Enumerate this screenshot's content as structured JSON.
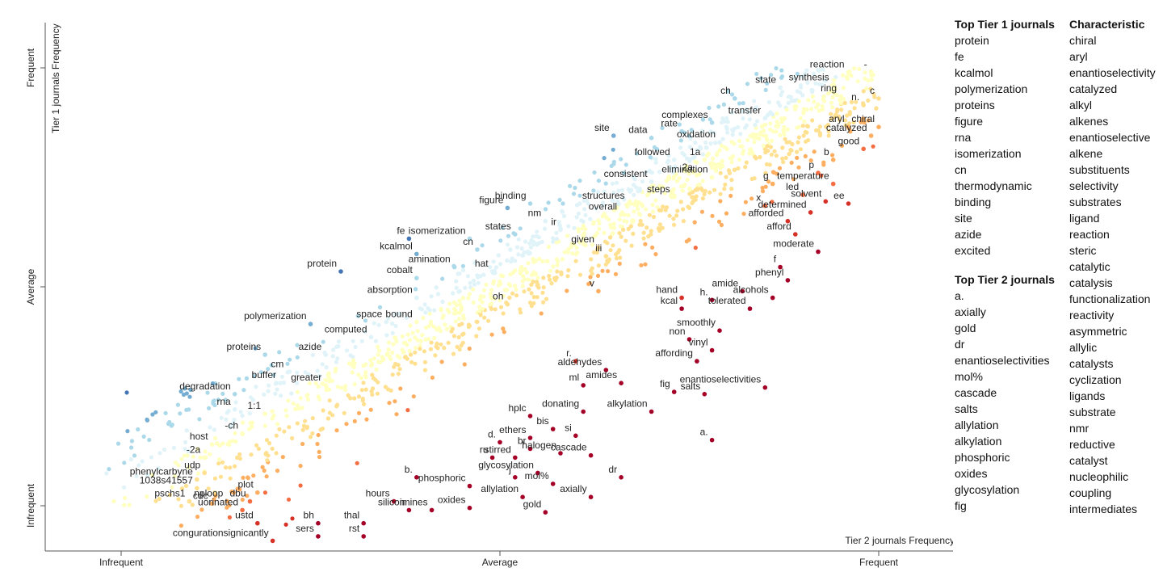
{
  "chart_data": {
    "type": "scatter",
    "x_axis": {
      "title": "Tier 2 journals Frequency",
      "ticks": [
        "Infrequent",
        "Average",
        "Frequent"
      ],
      "range": [
        0,
        1
      ]
    },
    "y_axis": {
      "title": "Tier 1 journals Frequency",
      "ticks": [
        "Infrequent",
        "Average",
        "Frequent"
      ],
      "range": [
        0,
        1
      ]
    },
    "color_scale": [
      "#a50026",
      "#d73027",
      "#f46d43",
      "#fdae61",
      "#fee090",
      "#ffffbf",
      "#e0f3f8",
      "#abd9e9",
      "#74add1",
      "#4575b4",
      "#313695"
    ],
    "labeled_points": [
      {
        "term": "reaction",
        "x": 0.96,
        "y": 0.99
      },
      {
        "term": "-",
        "x": 0.99,
        "y": 0.99
      },
      {
        "term": "state",
        "x": 0.87,
        "y": 0.955
      },
      {
        "term": "synthesis",
        "x": 0.94,
        "y": 0.96
      },
      {
        "term": "ring",
        "x": 0.95,
        "y": 0.935
      },
      {
        "term": "c",
        "x": 1.0,
        "y": 0.93
      },
      {
        "term": "n.",
        "x": 0.98,
        "y": 0.915
      },
      {
        "term": "ch",
        "x": 0.81,
        "y": 0.93
      },
      {
        "term": "transfer",
        "x": 0.85,
        "y": 0.885
      },
      {
        "term": "complexes",
        "x": 0.78,
        "y": 0.875
      },
      {
        "term": "aryl",
        "x": 0.96,
        "y": 0.865
      },
      {
        "term": "chiral",
        "x": 1.0,
        "y": 0.865
      },
      {
        "term": "rate",
        "x": 0.74,
        "y": 0.855
      },
      {
        "term": "catalyzed",
        "x": 0.99,
        "y": 0.845
      },
      {
        "term": "site",
        "x": 0.65,
        "y": 0.845
      },
      {
        "term": "data",
        "x": 0.7,
        "y": 0.84
      },
      {
        "term": "oxidation",
        "x": 0.79,
        "y": 0.83
      },
      {
        "term": "good",
        "x": 0.98,
        "y": 0.815
      },
      {
        "term": "1a",
        "x": 0.77,
        "y": 0.79
      },
      {
        "term": "followed",
        "x": 0.73,
        "y": 0.79
      },
      {
        "term": "b",
        "x": 0.94,
        "y": 0.79
      },
      {
        "term": "2a",
        "x": 0.76,
        "y": 0.755
      },
      {
        "term": "p",
        "x": 0.92,
        "y": 0.76
      },
      {
        "term": "consistent",
        "x": 0.7,
        "y": 0.74
      },
      {
        "term": "elimination",
        "x": 0.78,
        "y": 0.75
      },
      {
        "term": "temperature",
        "x": 0.94,
        "y": 0.735
      },
      {
        "term": "g",
        "x": 0.86,
        "y": 0.735
      },
      {
        "term": "led",
        "x": 0.9,
        "y": 0.71
      },
      {
        "term": "steps",
        "x": 0.73,
        "y": 0.705
      },
      {
        "term": "solvent",
        "x": 0.93,
        "y": 0.695
      },
      {
        "term": "ee",
        "x": 0.96,
        "y": 0.69
      },
      {
        "term": "binding",
        "x": 0.54,
        "y": 0.69
      },
      {
        "term": "structures",
        "x": 0.67,
        "y": 0.69
      },
      {
        "term": "x",
        "x": 0.85,
        "y": 0.685
      },
      {
        "term": "figure",
        "x": 0.51,
        "y": 0.68
      },
      {
        "term": "determined",
        "x": 0.91,
        "y": 0.67
      },
      {
        "term": "overall",
        "x": 0.66,
        "y": 0.665
      },
      {
        "term": "nm",
        "x": 0.56,
        "y": 0.65
      },
      {
        "term": "afforded",
        "x": 0.88,
        "y": 0.65
      },
      {
        "term": "ir",
        "x": 0.58,
        "y": 0.63
      },
      {
        "term": "afford",
        "x": 0.89,
        "y": 0.62
      },
      {
        "term": "states",
        "x": 0.52,
        "y": 0.62
      },
      {
        "term": "isomerization",
        "x": 0.46,
        "y": 0.61
      },
      {
        "term": "fe",
        "x": 0.38,
        "y": 0.61
      },
      {
        "term": "cn",
        "x": 0.47,
        "y": 0.585
      },
      {
        "term": "given",
        "x": 0.63,
        "y": 0.59
      },
      {
        "term": "kcalmol",
        "x": 0.39,
        "y": 0.575
      },
      {
        "term": "iii",
        "x": 0.64,
        "y": 0.57
      },
      {
        "term": "moderate",
        "x": 0.92,
        "y": 0.58
      },
      {
        "term": "amination",
        "x": 0.44,
        "y": 0.545
      },
      {
        "term": "f",
        "x": 0.87,
        "y": 0.545
      },
      {
        "term": "protein",
        "x": 0.29,
        "y": 0.535
      },
      {
        "term": "hat",
        "x": 0.49,
        "y": 0.535
      },
      {
        "term": "cobalt",
        "x": 0.39,
        "y": 0.52
      },
      {
        "term": "phenyl",
        "x": 0.88,
        "y": 0.515
      },
      {
        "term": "v",
        "x": 0.63,
        "y": 0.49
      },
      {
        "term": "amide",
        "x": 0.82,
        "y": 0.49
      },
      {
        "term": "hand",
        "x": 0.74,
        "y": 0.475
      },
      {
        "term": "alcohols",
        "x": 0.86,
        "y": 0.475
      },
      {
        "term": "absorption",
        "x": 0.39,
        "y": 0.475
      },
      {
        "term": "h.",
        "x": 0.78,
        "y": 0.47
      },
      {
        "term": "oh",
        "x": 0.51,
        "y": 0.46
      },
      {
        "term": "kcal",
        "x": 0.74,
        "y": 0.45
      },
      {
        "term": "tolerated",
        "x": 0.83,
        "y": 0.45
      },
      {
        "term": "space",
        "x": 0.35,
        "y": 0.42
      },
      {
        "term": "bound",
        "x": 0.39,
        "y": 0.42
      },
      {
        "term": "polymerization",
        "x": 0.25,
        "y": 0.415
      },
      {
        "term": "smoothly",
        "x": 0.79,
        "y": 0.4
      },
      {
        "term": "computed",
        "x": 0.33,
        "y": 0.385
      },
      {
        "term": "non",
        "x": 0.75,
        "y": 0.38
      },
      {
        "term": "vinyl",
        "x": 0.78,
        "y": 0.355
      },
      {
        "term": "proteins",
        "x": 0.19,
        "y": 0.345
      },
      {
        "term": "azide",
        "x": 0.27,
        "y": 0.345
      },
      {
        "term": "affording",
        "x": 0.76,
        "y": 0.33
      },
      {
        "term": "r.",
        "x": 0.6,
        "y": 0.33
      },
      {
        "term": "aldehydes",
        "x": 0.64,
        "y": 0.31
      },
      {
        "term": "cm",
        "x": 0.22,
        "y": 0.305
      },
      {
        "term": "buffer",
        "x": 0.21,
        "y": 0.28
      },
      {
        "term": "greater",
        "x": 0.27,
        "y": 0.275
      },
      {
        "term": "amides",
        "x": 0.66,
        "y": 0.28
      },
      {
        "term": "ml",
        "x": 0.61,
        "y": 0.275
      },
      {
        "term": "enantioselectivities",
        "x": 0.85,
        "y": 0.27
      },
      {
        "term": "fig",
        "x": 0.73,
        "y": 0.26
      },
      {
        "term": "salts",
        "x": 0.77,
        "y": 0.255
      },
      {
        "term": "degradation",
        "x": 0.15,
        "y": 0.255
      },
      {
        "term": "rna",
        "x": 0.15,
        "y": 0.22
      },
      {
        "term": "1:1",
        "x": 0.19,
        "y": 0.21
      },
      {
        "term": "donating",
        "x": 0.61,
        "y": 0.215
      },
      {
        "term": "alkylation",
        "x": 0.7,
        "y": 0.215
      },
      {
        "term": "hplc",
        "x": 0.54,
        "y": 0.205
      },
      {
        "term": "bis",
        "x": 0.57,
        "y": 0.175
      },
      {
        "term": "-ch",
        "x": 0.16,
        "y": 0.165
      },
      {
        "term": "ethers",
        "x": 0.54,
        "y": 0.155
      },
      {
        "term": "si",
        "x": 0.6,
        "y": 0.16
      },
      {
        "term": "host",
        "x": 0.12,
        "y": 0.14
      },
      {
        "term": "d.",
        "x": 0.5,
        "y": 0.145
      },
      {
        "term": "br",
        "x": 0.54,
        "y": 0.13
      },
      {
        "term": "a.",
        "x": 0.78,
        "y": 0.15
      },
      {
        "term": "halogen",
        "x": 0.58,
        "y": 0.12
      },
      {
        "term": "stirred",
        "x": 0.52,
        "y": 0.11
      },
      {
        "term": "ru",
        "x": 0.49,
        "y": 0.11
      },
      {
        "term": "cascade",
        "x": 0.62,
        "y": 0.115
      },
      {
        "term": "-2a",
        "x": 0.11,
        "y": 0.11
      },
      {
        "term": "udp",
        "x": 0.11,
        "y": 0.075
      },
      {
        "term": "glycosylation",
        "x": 0.55,
        "y": 0.075
      },
      {
        "term": "b.",
        "x": 0.39,
        "y": 0.065
      },
      {
        "term": "j",
        "x": 0.52,
        "y": 0.065
      },
      {
        "term": "dr",
        "x": 0.66,
        "y": 0.065
      },
      {
        "term": "phenylcarbyne",
        "x": 0.1,
        "y": 0.06
      },
      {
        "term": "mol%",
        "x": 0.57,
        "y": 0.05
      },
      {
        "term": "1038s41557",
        "x": 0.1,
        "y": 0.04
      },
      {
        "term": "phosphoric",
        "x": 0.46,
        "y": 0.045
      },
      {
        "term": "plot",
        "x": 0.18,
        "y": 0.03
      },
      {
        "term": "allylation",
        "x": 0.53,
        "y": 0.02
      },
      {
        "term": "axially",
        "x": 0.62,
        "y": 0.02
      },
      {
        "term": "hours",
        "x": 0.36,
        "y": 0.01
      },
      {
        "term": "pschs1",
        "x": 0.09,
        "y": 0.01
      },
      {
        "term": "cdc",
        "x": 0.12,
        "y": 0.005
      },
      {
        "term": "nploop",
        "x": 0.14,
        "y": 0.01
      },
      {
        "term": "dbu",
        "x": 0.17,
        "y": 0.01
      },
      {
        "term": "uorinated",
        "x": 0.16,
        "y": -0.01
      },
      {
        "term": "silicon",
        "x": 0.38,
        "y": -0.01
      },
      {
        "term": "imines",
        "x": 0.41,
        "y": -0.01
      },
      {
        "term": "oxides",
        "x": 0.46,
        "y": -0.005
      },
      {
        "term": "gold",
        "x": 0.56,
        "y": -0.015
      },
      {
        "term": "ustd",
        "x": 0.18,
        "y": -0.04
      },
      {
        "term": "bh",
        "x": 0.26,
        "y": -0.04
      },
      {
        "term": "thal",
        "x": 0.32,
        "y": -0.04
      },
      {
        "term": "sers",
        "x": 0.26,
        "y": -0.07
      },
      {
        "term": "rst",
        "x": 0.32,
        "y": -0.07
      },
      {
        "term": "congurationsignicantly",
        "x": 0.2,
        "y": -0.08
      }
    ]
  },
  "lists": {
    "top_tier1": {
      "title": "Top Tier 1 journals",
      "items": [
        "protein",
        "fe",
        "kcalmol",
        "polymerization",
        "proteins",
        "figure",
        "rna",
        "isomerization",
        "cn",
        "thermodynamic",
        "binding",
        "site",
        "azide",
        "excited"
      ]
    },
    "top_tier2": {
      "title": "Top Tier 2 journals",
      "items": [
        "a.",
        "axially",
        "gold",
        "dr",
        "enantioselectivities",
        "mol%",
        "cascade",
        "salts",
        "allylation",
        "alkylation",
        "phosphoric",
        "oxides",
        "glycosylation",
        "fig"
      ]
    },
    "characteristic": {
      "title": "Characteristic",
      "items": [
        "chiral",
        "aryl",
        "enantioselectivity",
        "catalyzed",
        "alkyl",
        "alkenes",
        "enantioselective",
        "alkene",
        "substituents",
        "selectivity",
        "substrates",
        "ligand",
        "reaction",
        "steric",
        "catalytic",
        "catalysis",
        "functionalization",
        "reactivity",
        "asymmetric",
        "allylic",
        "catalysts",
        "cyclization",
        "ligands",
        "substrate",
        "nmr",
        "reductive",
        "catalyst",
        "nucleophilic",
        "coupling",
        "intermediates"
      ]
    }
  }
}
